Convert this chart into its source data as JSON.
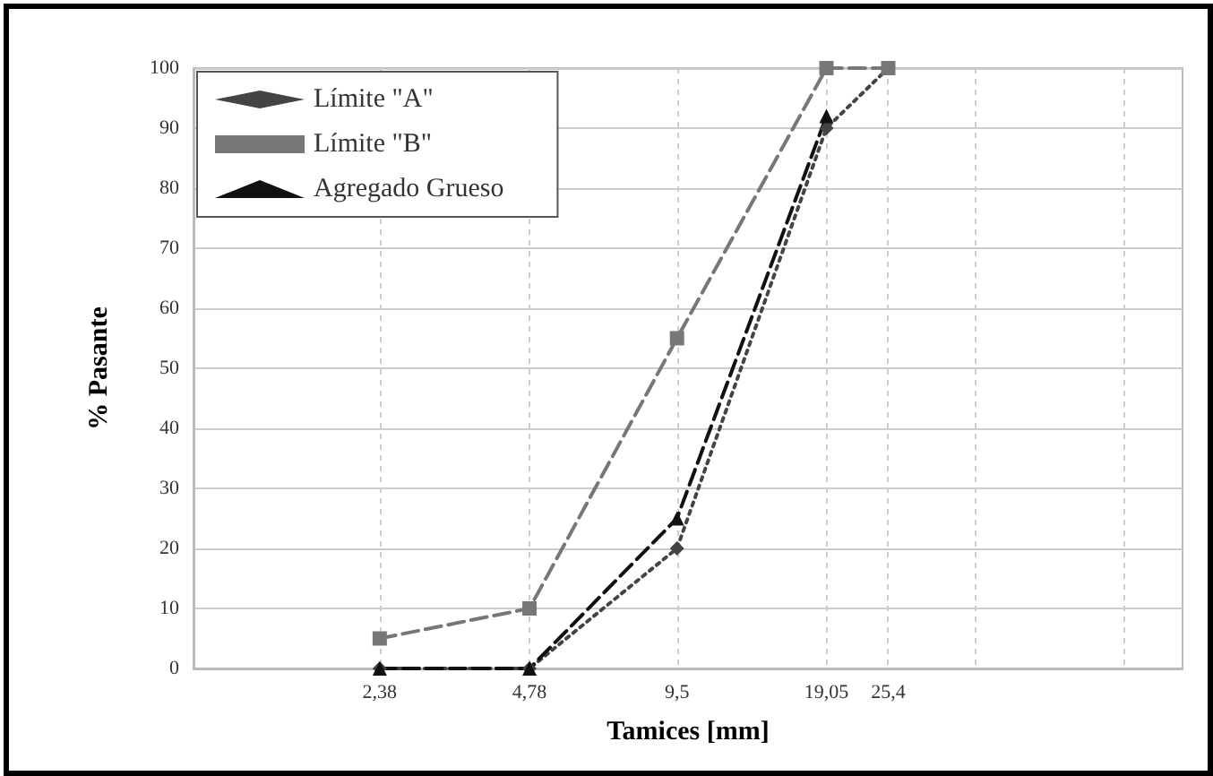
{
  "chart_data": {
    "type": "line",
    "xlabel": "Tamices [mm]",
    "ylabel": "% Pasante",
    "log": "x",
    "x": [
      2.38,
      4.78,
      9.5,
      19.05,
      25.4
    ],
    "xlim": [
      1,
      100
    ],
    "xticks": [
      {
        "value": 2.38,
        "label": "2,38"
      },
      {
        "value": 4.78,
        "label": "4,78"
      },
      {
        "value": 9.5,
        "label": "9,5"
      },
      {
        "value": 19.05,
        "label": "19,05"
      },
      {
        "value": 25.4,
        "label": "25,4"
      },
      {
        "value": 38.1,
        "label": null
      },
      {
        "value": 76.2,
        "label": null
      }
    ],
    "ylim": [
      0,
      100
    ],
    "yticks": [
      0,
      10,
      20,
      30,
      40,
      50,
      60,
      70,
      80,
      90,
      100
    ],
    "grid": true,
    "legend": "top left",
    "series": [
      {
        "name": "Límite \"A\"",
        "color": "#444444",
        "marker": "diamond",
        "line_style": "dotted",
        "values": [
          0,
          0,
          20,
          90,
          100
        ]
      },
      {
        "name": "Límite \"B\"",
        "color": "#777777",
        "marker": "square",
        "line_style": "dashed",
        "values": [
          5,
          10,
          55,
          100,
          100
        ]
      },
      {
        "name": "Agregado Grueso",
        "color": "#111111",
        "marker": "triangle",
        "line_style": "dashed",
        "values": [
          0,
          0,
          25,
          92,
          null
        ]
      }
    ]
  }
}
